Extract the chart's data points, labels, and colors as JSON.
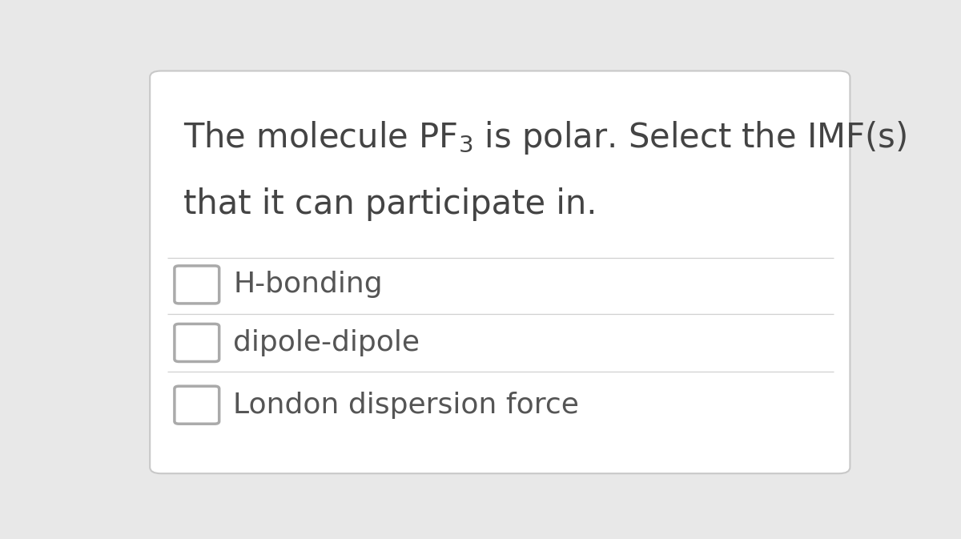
{
  "bg_color": "#e8e8e8",
  "card_color": "#ffffff",
  "card_border_color": "#c8c8c8",
  "title_color": "#444444",
  "title_fontsize": 30,
  "title_line2": "that it can participate in.",
  "options": [
    "H-bonding",
    "dipole-dipole",
    "London dispersion force"
  ],
  "option_fontsize": 26,
  "option_color": "#555555",
  "divider_color": "#d0d0d0",
  "radio_color": "#aaaaaa",
  "radio_size": 0.048,
  "radio_linewidth": 2.5
}
